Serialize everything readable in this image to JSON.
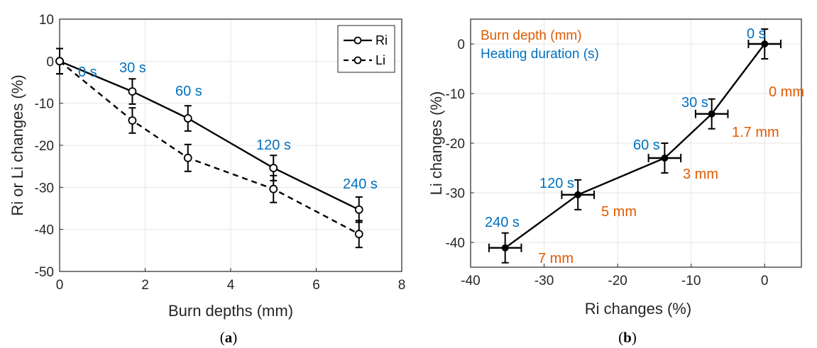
{
  "colors": {
    "annotation_blue": "#0070C0",
    "annotation_orange": "#E05A00",
    "line": "#000000",
    "grid": "#E6E6E6"
  },
  "chart_data": [
    {
      "type": "line",
      "caption_letter": "a",
      "xlabel": "Burn depths (mm)",
      "ylabel": "Ri or Li changes (%)",
      "xlim": [
        0,
        8
      ],
      "ylim": [
        -50,
        10
      ],
      "xticks": [
        0,
        2,
        4,
        6,
        8
      ],
      "yticks": [
        10,
        0,
        -10,
        -20,
        -30,
        -40,
        -50
      ],
      "grid": true,
      "legend_position": "top-right",
      "series": [
        {
          "name": "Ri",
          "line_style": "solid",
          "marker": "open-circle",
          "x": [
            0,
            1.7,
            3,
            5,
            7
          ],
          "y": [
            0,
            -7.2,
            -13.6,
            -25.4,
            -35.3
          ],
          "y_error": [
            3,
            3,
            3,
            3,
            3
          ]
        },
        {
          "name": "Li",
          "line_style": "dashed",
          "marker": "open-circle",
          "x": [
            0,
            1.7,
            3,
            5,
            7
          ],
          "y": [
            0,
            -14.1,
            -23,
            -30.4,
            -41.1
          ],
          "y_error": [
            3,
            3,
            3.2,
            3.2,
            3.2
          ]
        }
      ],
      "annotations": [
        "0 s",
        "30 s",
        "60 s",
        "120 s",
        "240 s"
      ]
    },
    {
      "type": "line",
      "caption_letter": "b",
      "xlabel": "Ri changes (%)",
      "ylabel": "Li changes (%)",
      "xlim": [
        -40,
        5
      ],
      "ylim": [
        -45,
        5
      ],
      "xticks": [
        -40,
        -30,
        -20,
        -10,
        0
      ],
      "yticks": [
        0,
        -10,
        -20,
        -30,
        -40
      ],
      "grid": true,
      "legend_entries": [
        "Burn depth (mm)",
        "Heating duration (s)"
      ],
      "series": [
        {
          "line_style": "solid",
          "marker": "filled-circle",
          "x": [
            0,
            -7.2,
            -13.6,
            -25.4,
            -35.3
          ],
          "y": [
            0,
            -14.1,
            -23,
            -30.4,
            -41.1
          ],
          "x_error": [
            2.2,
            2.2,
            2.2,
            2.2,
            2.2
          ],
          "y_error": [
            3,
            3,
            3,
            3,
            3
          ]
        }
      ],
      "duration_labels": [
        "0 s",
        "30 s",
        "60 s",
        "120 s",
        "240 s"
      ],
      "depth_labels": [
        "0 mm",
        "1.7 mm",
        "3 mm",
        "5 mm",
        "7 mm"
      ]
    }
  ]
}
